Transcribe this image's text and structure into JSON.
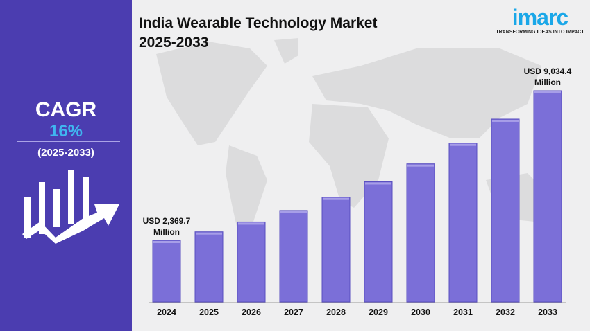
{
  "title_line1": "India Wearable Technology Market",
  "title_line2": "2025-2033",
  "logo": {
    "wordmark": "imarc",
    "tagline": "TRANSFORMING IDEAS INTO IMPACT"
  },
  "cagr": {
    "label": "CAGR",
    "value": "16%",
    "period": "(2025-2033)"
  },
  "colors": {
    "panel": "#4b3db0",
    "bar": "#7b6fd8",
    "accent": "#3fb6f0",
    "background": "#efeff0"
  },
  "chart_data": {
    "type": "bar",
    "categories": [
      "2024",
      "2025",
      "2026",
      "2027",
      "2028",
      "2029",
      "2030",
      "2031",
      "2032",
      "2033"
    ],
    "values": [
      2369.7,
      2749,
      3189,
      3699,
      4291,
      4978,
      5774,
      6698,
      7770,
      9034.4
    ],
    "annotations": [
      {
        "category": "2024",
        "line1": "USD 2,369.7",
        "line2": "Million"
      },
      {
        "category": "2033",
        "line1": "USD 9,034.4",
        "line2": "Million"
      }
    ],
    "xlabel": "",
    "ylabel": "",
    "grid": false
  }
}
